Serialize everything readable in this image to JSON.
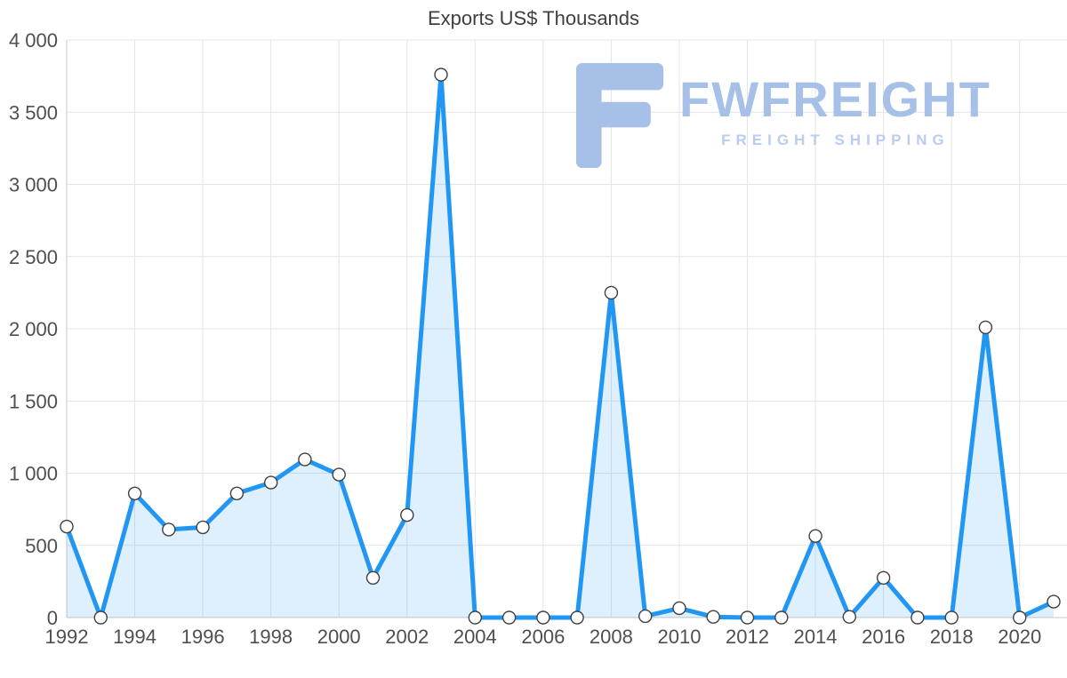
{
  "title": "Exports US$ Thousands",
  "logo": {
    "brand": "FWFREIGHT",
    "tagline": "FREIGHT SHIPPING"
  },
  "colors": {
    "line": "#2196f3",
    "area": "rgba(33,150,243,0.15)",
    "marker_fill": "#ffffff",
    "marker_stroke": "#404040",
    "grid": "#e4e4e4",
    "axis_line": "#c9c9c9",
    "axis_text": "#4f4f4f",
    "title": "#3f3f3f",
    "logo": "#a6c0e8",
    "tagline": "#b9cdf0"
  },
  "chart_data": {
    "type": "area",
    "title": "Exports US$ Thousands",
    "x": [
      1992,
      1993,
      1994,
      1995,
      1996,
      1997,
      1998,
      1999,
      2000,
      2001,
      2002,
      2003,
      2004,
      2005,
      2006,
      2007,
      2008,
      2009,
      2010,
      2011,
      2012,
      2013,
      2014,
      2015,
      2016,
      2017,
      2018,
      2019,
      2020,
      2021
    ],
    "values": [
      630,
      0,
      860,
      610,
      625,
      860,
      935,
      1095,
      990,
      275,
      710,
      3760,
      0,
      0,
      0,
      0,
      2250,
      10,
      65,
      5,
      0,
      0,
      565,
      5,
      275,
      0,
      0,
      2010,
      0,
      110
    ],
    "ylim": [
      0,
      4000
    ],
    "y_ticks": [
      0,
      500,
      1000,
      1500,
      2000,
      2500,
      3000,
      3500,
      4000
    ],
    "x_tick_years": [
      1992,
      1994,
      1996,
      1998,
      2000,
      2002,
      2004,
      2006,
      2008,
      2010,
      2012,
      2014,
      2016,
      2018,
      2020
    ],
    "grid": true,
    "markers": true,
    "legend": "none",
    "xlabel": "",
    "ylabel": ""
  }
}
